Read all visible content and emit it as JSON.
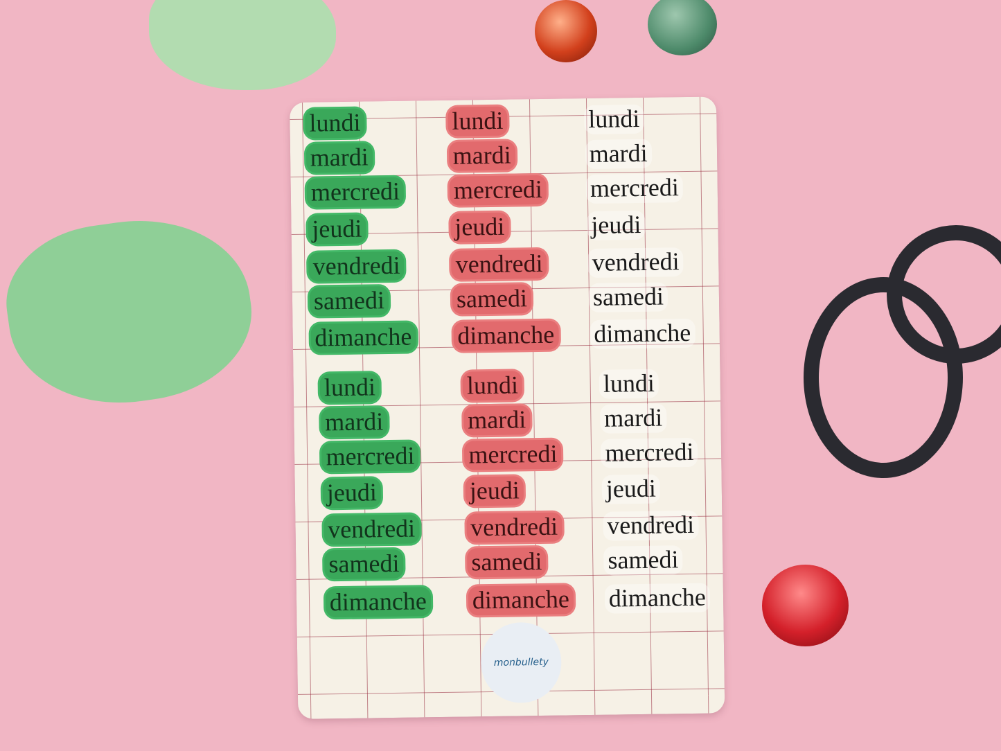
{
  "days": [
    "lundi",
    "mardi",
    "mercredi",
    "jeudi",
    "vendredi",
    "samedi",
    "dimanche"
  ],
  "sticker_sets": [
    "green",
    "red",
    "clear"
  ],
  "colors": {
    "background": "#f1b6c4",
    "green_sticker": "#3aa85a",
    "red_sticker": "#e26a6d",
    "sheet": "#f6f1e6",
    "logo_blue": "#225d8a"
  },
  "logo": {
    "text": "monbullety"
  }
}
